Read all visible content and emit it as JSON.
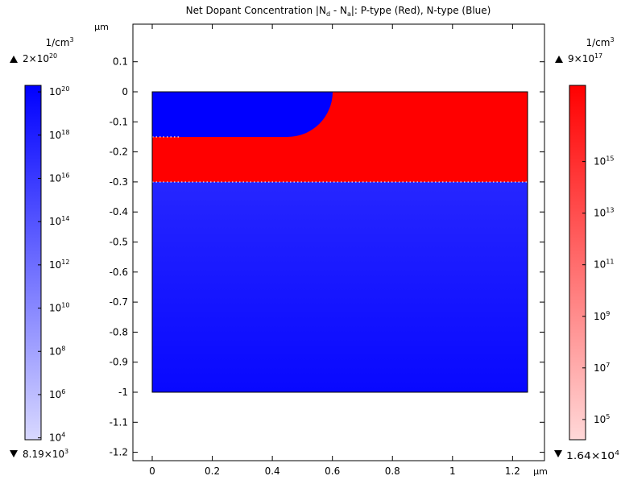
{
  "chart_data": {
    "type": "heatmap",
    "title": "Net Dopant Concentration |N_d - N_a|: P-type (Red), N-type (Blue)",
    "title_parts": {
      "prefix": "Net Dopant Concentration ",
      "N": "N",
      "sub_d": "d",
      "minus": " - ",
      "sub_a": "a",
      "suffix": ": P-type (Red), N-type (Blue)"
    },
    "x_axis": {
      "unit": "µm",
      "range": [
        -0.06,
        1.3
      ],
      "ticks": [
        {
          "value": 0,
          "label": "0"
        },
        {
          "value": 0.2,
          "label": "0.2"
        },
        {
          "value": 0.4,
          "label": "0.4"
        },
        {
          "value": 0.6,
          "label": "0.6"
        },
        {
          "value": 0.8,
          "label": "0.8"
        },
        {
          "value": 1.0,
          "label": "1"
        },
        {
          "value": 1.2,
          "label": "1.2"
        }
      ]
    },
    "y_axis": {
      "unit": "µm",
      "range": [
        -1.22,
        0.22
      ],
      "ticks": [
        {
          "value": 0.1,
          "label": "0.1"
        },
        {
          "value": 0,
          "label": "0"
        },
        {
          "value": -0.1,
          "label": "-0.1"
        },
        {
          "value": -0.2,
          "label": "-0.2"
        },
        {
          "value": -0.3,
          "label": "-0.3"
        },
        {
          "value": -0.4,
          "label": "-0.4"
        },
        {
          "value": -0.5,
          "label": "-0.5"
        },
        {
          "value": -0.6,
          "label": "-0.6"
        },
        {
          "value": -0.7,
          "label": "-0.7"
        },
        {
          "value": -0.8,
          "label": "-0.8"
        },
        {
          "value": -0.9,
          "label": "-0.9"
        },
        {
          "value": -1.0,
          "label": "-1"
        },
        {
          "value": -1.1,
          "label": "-1.1"
        },
        {
          "value": -1.2,
          "label": "-1.2"
        }
      ]
    },
    "domain": {
      "x": [
        0,
        1.25
      ],
      "y": [
        -1.0,
        0
      ]
    },
    "regions": [
      {
        "label": "N-type",
        "color": "#0000ff",
        "x": [
          0,
          0.6
        ],
        "y": [
          -0.15,
          0
        ],
        "corner_radius_um": 0.15
      },
      {
        "label": "P-type",
        "color": "#ff0000",
        "x": [
          0,
          1.25
        ],
        "y": [
          -0.3,
          0
        ]
      },
      {
        "label": "N-type",
        "color": "#1414ff",
        "x": [
          0,
          1.25
        ],
        "y": [
          -1.0,
          -0.3
        ]
      }
    ],
    "colorbars": [
      {
        "name": "N-type",
        "unit": "1/cm",
        "unit_sup": "3",
        "max_base": "2×10",
        "max_exp": "20",
        "min_base": "8.19×10",
        "min_exp": "3",
        "log_range": [
          3.913,
          20.301
        ],
        "color_high": "#0000ff",
        "color_low": "#d8d8ff",
        "ticks": [
          {
            "exp": 20,
            "base": "10",
            "sup": "20"
          },
          {
            "exp": 18,
            "base": "10",
            "sup": "18"
          },
          {
            "exp": 16,
            "base": "10",
            "sup": "16"
          },
          {
            "exp": 14,
            "base": "10",
            "sup": "14"
          },
          {
            "exp": 12,
            "base": "10",
            "sup": "12"
          },
          {
            "exp": 10,
            "base": "10",
            "sup": "10"
          },
          {
            "exp": 8,
            "base": "10",
            "sup": "8"
          },
          {
            "exp": 6,
            "base": "10",
            "sup": "6"
          },
          {
            "exp": 4,
            "base": "10",
            "sup": "4"
          }
        ]
      },
      {
        "name": "P-type",
        "unit": "1/cm",
        "unit_sup": "3",
        "max_base": "9×10",
        "max_exp": "17",
        "min_base": "1.64×10",
        "min_exp": "4",
        "log_range": [
          4.215,
          17.954
        ],
        "color_high": "#ff0000",
        "color_low": "#ffd8d8",
        "ticks": [
          {
            "exp": 15,
            "base": "10",
            "sup": "15"
          },
          {
            "exp": 13,
            "base": "10",
            "sup": "13"
          },
          {
            "exp": 11,
            "base": "10",
            "sup": "11"
          },
          {
            "exp": 9,
            "base": "10",
            "sup": "9"
          },
          {
            "exp": 7,
            "base": "10",
            "sup": "7"
          },
          {
            "exp": 5,
            "base": "10",
            "sup": "5"
          }
        ]
      }
    ]
  }
}
